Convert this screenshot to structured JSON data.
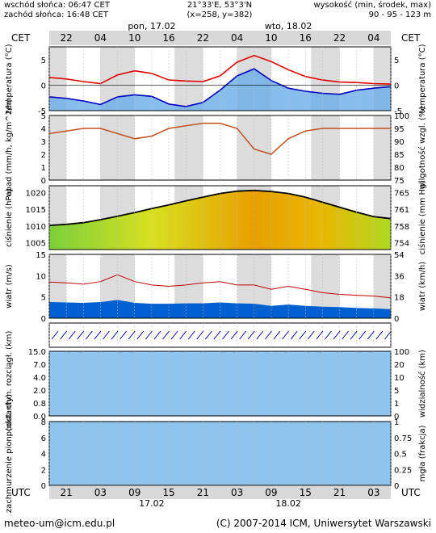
{
  "header": {
    "sunrise": "wschód słońca: 06:47 CET",
    "sunset": "zachód słońca: 16:48 CET",
    "coords": "21°33'E, 53°3'N",
    "grid": "(x=258, y=382)",
    "alt_label": "wysokość (min, środek, max)",
    "alt_values": "90 - 95 - 123 m"
  },
  "top_axis": {
    "tz": "CET",
    "hours": [
      "22",
      "04",
      "10",
      "16",
      "22",
      "04",
      "10",
      "16",
      "22",
      "04"
    ],
    "days": [
      {
        "label": "pon, 17.02",
        "hour_index": 2
      },
      {
        "label": "wto, 18.02",
        "hour_index": 6
      }
    ]
  },
  "bottom_axis": {
    "tz": "UTC",
    "hours": [
      "21",
      "03",
      "09",
      "15",
      "21",
      "03",
      "09",
      "15",
      "21",
      "03"
    ],
    "days": [
      {
        "label": "17.02",
        "hour_index": 2
      },
      {
        "label": "18.02",
        "hour_index": 6
      }
    ]
  },
  "footer": {
    "email": "meteo-um@icm.edu.pl",
    "copyright": "(C) 2007-2014 ICM, Uniwersytet Warszawski"
  },
  "colors": {
    "temp_max": "#e00000",
    "temp_min": "#0000c0",
    "humidity": "#c05020",
    "pressure_line": "#000000",
    "wind_line": "#c00000",
    "wind_fill": "#0060d0",
    "visibility": "#e09020",
    "precip_bars": "#f0a000"
  },
  "chart_data": [
    {
      "type": "line",
      "name": "temperature",
      "ylabel_left": "temperatura (°C)",
      "ylabel_right": "temperatura (°C)",
      "ylim": [
        -5,
        7.5
      ],
      "yticks": [
        5,
        0,
        -5
      ],
      "x_hours": [
        0,
        3,
        6,
        9,
        12,
        15,
        18,
        21,
        24,
        27,
        30,
        33,
        36,
        39,
        42,
        45,
        48,
        51,
        54,
        57,
        60
      ],
      "series": [
        {
          "values": [
            1.5,
            1.2,
            0.7,
            0.3,
            2.0,
            2.8,
            2.3,
            1.0,
            0.8,
            0.7,
            1.8,
            4.5,
            5.8,
            4.6,
            3.0,
            1.7,
            1.0,
            0.6,
            0.5,
            0.3,
            0.2
          ]
        },
        {
          "values": [
            -2.3,
            -2.6,
            -3.1,
            -3.8,
            -2.3,
            -1.9,
            -2.2,
            -3.7,
            -4.2,
            -3.4,
            -1.0,
            1.8,
            3.2,
            0.9,
            -0.6,
            -1.2,
            -1.6,
            -1.8,
            -1.0,
            -0.6,
            -0.3
          ]
        }
      ]
    },
    {
      "type": "line",
      "name": "humidity",
      "ylabel_left": "opad (mm/h, kg/m^2/h)",
      "ylabel_right": "wilgotność wzgl. (%)",
      "ylim_left": [
        0,
        5
      ],
      "yticks_left": [
        5,
        4,
        3,
        2,
        1,
        0
      ],
      "ylim_right": [
        75,
        100
      ],
      "yticks_right": [
        100,
        95,
        90,
        85,
        80,
        75
      ],
      "x_hours": [
        0,
        3,
        6,
        9,
        12,
        15,
        18,
        21,
        24,
        27,
        30,
        33,
        36,
        39,
        42,
        45,
        48,
        51,
        54,
        57,
        60
      ],
      "values": [
        93,
        94,
        95,
        95,
        93,
        91,
        92,
        95,
        96,
        97,
        97,
        95,
        87,
        85,
        91,
        94,
        95,
        95,
        95,
        95,
        95
      ]
    },
    {
      "type": "area",
      "name": "pressure",
      "ylabel_left": "ciśnienie (hPa)",
      "ylabel_right": "ciśnienie (mm Hg)",
      "ylim": [
        1003,
        1022
      ],
      "yticks_left": [
        1020,
        1015,
        1010,
        1005
      ],
      "yticks_right": [
        "765",
        "761",
        "758",
        "754"
      ],
      "x_hours": [
        0,
        3,
        6,
        9,
        12,
        15,
        18,
        21,
        24,
        27,
        30,
        33,
        36,
        39,
        42,
        45,
        48,
        51,
        54,
        57,
        60
      ],
      "values": [
        1010.2,
        1010.5,
        1011.0,
        1011.9,
        1012.9,
        1014.0,
        1015.2,
        1016.3,
        1017.5,
        1018.6,
        1019.7,
        1020.4,
        1020.6,
        1020.3,
        1019.7,
        1018.6,
        1017.1,
        1015.6,
        1014.1,
        1012.8,
        1012.2
      ]
    },
    {
      "type": "area",
      "name": "wind",
      "ylabel_left": "wiatr (m/s)",
      "ylabel_right": "wiatr (km/h)",
      "ylim": [
        0,
        15
      ],
      "yticks_left": [
        15,
        10,
        5,
        0
      ],
      "yticks_right": [
        "54",
        "36",
        "18",
        "0"
      ],
      "x_hours": [
        0,
        3,
        6,
        9,
        12,
        15,
        18,
        21,
        24,
        27,
        30,
        33,
        36,
        39,
        42,
        45,
        48,
        51,
        54,
        57,
        60
      ],
      "gusts": [
        8.5,
        8.3,
        8.0,
        8.6,
        10.2,
        8.6,
        7.8,
        7.5,
        7.8,
        8.3,
        8.6,
        7.8,
        7.8,
        6.8,
        7.5,
        6.8,
        6.0,
        5.6,
        5.4,
        5.2,
        4.8
      ],
      "mean": [
        3.8,
        3.7,
        3.6,
        3.8,
        4.3,
        3.6,
        3.4,
        3.4,
        3.5,
        3.5,
        3.7,
        3.5,
        3.4,
        2.9,
        3.2,
        2.9,
        2.7,
        2.6,
        2.4,
        2.3,
        2.1
      ]
    },
    {
      "type": "scatter",
      "name": "visibility",
      "ylabel_left": "podst. chm. rozciągł. (km)",
      "ylabel_right": "widzialność (km)",
      "ylim_left": [
        0,
        15
      ],
      "yticks_left": [
        "15.0",
        "7.0",
        "4.0",
        "2.0",
        "0.8",
        "0.0"
      ],
      "ylim_right": [
        0,
        100
      ],
      "yticks_right": [
        "100",
        "20",
        "10",
        "5",
        "1",
        "0"
      ]
    },
    {
      "type": "area",
      "name": "clouds",
      "ylabel_left": "zachmurzenie pion. (oktanty)",
      "ylabel_right": "mgła (frakcja)",
      "ylim_left": [
        0,
        8
      ],
      "yticks_left": [
        8,
        6,
        4,
        2,
        0
      ],
      "ylim_right": [
        0,
        1
      ],
      "yticks_right": [
        "1",
        "0.75",
        "0.5",
        "0.25",
        "0"
      ]
    }
  ]
}
